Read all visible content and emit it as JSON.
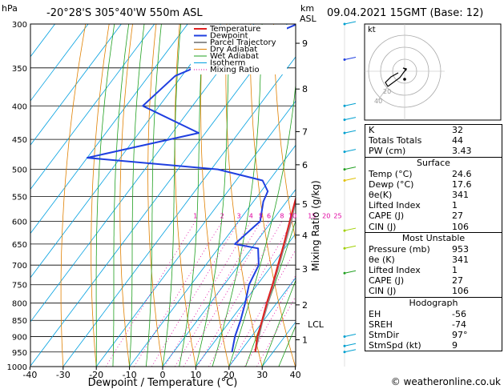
{
  "header": {
    "location": "-20°28'S  305°40'W  550m  ASL",
    "datetime": "09.04.2021  15GMT  (Base: 12)",
    "hpa_label": "hPa",
    "km_label": "km",
    "asl_label": "ASL"
  },
  "chart_data": {
    "type": "skew-t",
    "xlabel": "Dewpoint / Temperature (°C)",
    "ylabel_right": "Mixing Ratio (g/kg)",
    "x_ticks": [
      "-40",
      "-30",
      "-20",
      "-10",
      "0",
      "10",
      "20",
      "30",
      "40"
    ],
    "p_ticks": [
      {
        "p": 300,
        "label": "300"
      },
      {
        "p": 350,
        "label": "350"
      },
      {
        "p": 400,
        "label": "400"
      },
      {
        "p": 450,
        "label": "450"
      },
      {
        "p": 500,
        "label": "500"
      },
      {
        "p": 550,
        "label": "550"
      },
      {
        "p": 600,
        "label": "600"
      },
      {
        "p": 650,
        "label": "650"
      },
      {
        "p": 700,
        "label": "700"
      },
      {
        "p": 750,
        "label": "750"
      },
      {
        "p": 800,
        "label": "800"
      },
      {
        "p": 850,
        "label": "850"
      },
      {
        "p": 900,
        "label": "900"
      },
      {
        "p": 950,
        "label": "950"
      },
      {
        "p": 1000,
        "label": "1000"
      }
    ],
    "km_ticks": [
      {
        "p": 321,
        "label": "9"
      },
      {
        "p": 377,
        "label": "8"
      },
      {
        "p": 438,
        "label": "7"
      },
      {
        "p": 492,
        "label": "6"
      },
      {
        "p": 565,
        "label": "5"
      },
      {
        "p": 630,
        "label": "4"
      },
      {
        "p": 710,
        "label": "3"
      },
      {
        "p": 805,
        "label": "2"
      },
      {
        "p": 910,
        "label": "1"
      }
    ],
    "lcl": {
      "p": 860,
      "label": "LCL"
    },
    "mixing_ratio_labels": [
      "1",
      "2",
      "3",
      "4",
      "5",
      "6",
      "8",
      "10",
      "15",
      "20",
      "25"
    ],
    "legend": [
      "Temperature",
      "Dewpoint",
      "Parcel Trajectory",
      "Dry Adiabat",
      "Wet Adiabat",
      "Isotherm",
      "Mixing Ratio"
    ],
    "temperature": [
      {
        "p": 300,
        "t": -31
      },
      {
        "p": 350,
        "t": -23.5
      },
      {
        "p": 400,
        "t": -15
      },
      {
        "p": 450,
        "t": -8.5
      },
      {
        "p": 500,
        "t": -3
      },
      {
        "p": 550,
        "t": 1.8
      },
      {
        "p": 600,
        "t": 5.4
      },
      {
        "p": 650,
        "t": 8.8
      },
      {
        "p": 700,
        "t": 11.8
      },
      {
        "p": 750,
        "t": 14.6
      },
      {
        "p": 800,
        "t": 17
      },
      {
        "p": 850,
        "t": 19.5
      },
      {
        "p": 900,
        "t": 21.8
      },
      {
        "p": 950,
        "t": 24.6
      }
    ],
    "dewpoint": [
      {
        "p": 300,
        "t": -37
      },
      {
        "p": 330,
        "t": -50
      },
      {
        "p": 360,
        "t": -62
      },
      {
        "p": 400,
        "t": -65
      },
      {
        "p": 440,
        "t": -42
      },
      {
        "p": 480,
        "t": -70
      },
      {
        "p": 490,
        "t": -49
      },
      {
        "p": 500,
        "t": -28
      },
      {
        "p": 520,
        "t": -12
      },
      {
        "p": 540,
        "t": -8
      },
      {
        "p": 560,
        "t": -7
      },
      {
        "p": 600,
        "t": -3.5
      },
      {
        "p": 650,
        "t": -6
      },
      {
        "p": 660,
        "t": 2
      },
      {
        "p": 700,
        "t": 6
      },
      {
        "p": 750,
        "t": 7.5
      },
      {
        "p": 800,
        "t": 10.5
      },
      {
        "p": 850,
        "t": 13
      },
      {
        "p": 900,
        "t": 15
      },
      {
        "p": 950,
        "t": 17.6
      }
    ],
    "parcel": [
      {
        "p": 950,
        "t": 24.6
      },
      {
        "p": 860,
        "t": 20.2
      },
      {
        "p": 800,
        "t": 17.4
      },
      {
        "p": 700,
        "t": 12.1
      },
      {
        "p": 600,
        "t": 5.9
      },
      {
        "p": 500,
        "t": -2.6
      },
      {
        "p": 400,
        "t": -14.5
      },
      {
        "p": 300,
        "t": -30
      }
    ]
  },
  "hodograph": {
    "label": "kt",
    "ring_labels": [
      "20",
      "40"
    ]
  },
  "indices": [
    {
      "key": "K",
      "value": "32"
    },
    {
      "key": "Totals Totals",
      "value": "44"
    },
    {
      "key": "PW (cm)",
      "value": "3.43"
    }
  ],
  "surface": {
    "title": "Surface",
    "rows": [
      {
        "key": "Temp (°C)",
        "value": "24.6"
      },
      {
        "key": "Dewp (°C)",
        "value": "17.6"
      },
      {
        "key": "θe(K)",
        "value": "341"
      },
      {
        "key": "Lifted Index",
        "value": "1"
      },
      {
        "key": "CAPE (J)",
        "value": "27"
      },
      {
        "key": "CIN (J)",
        "value": "106"
      }
    ]
  },
  "most_unstable": {
    "title": "Most Unstable",
    "rows": [
      {
        "key": "Pressure (mb)",
        "value": "953"
      },
      {
        "key": "θe (K)",
        "value": "341"
      },
      {
        "key": "Lifted Index",
        "value": "1"
      },
      {
        "key": "CAPE (J)",
        "value": "27"
      },
      {
        "key": "CIN (J)",
        "value": "106"
      }
    ]
  },
  "hodo_params": {
    "title": "Hodograph",
    "rows": [
      {
        "key": "EH",
        "value": "-56"
      },
      {
        "key": "SREH",
        "value": "-74"
      },
      {
        "key": "StmDir",
        "value": "97°"
      },
      {
        "key": "StmSpd (kt)",
        "value": "9"
      }
    ]
  },
  "footer": "© weatheronline.co.uk",
  "colors": {
    "temperature": "#e02020",
    "dewpoint": "#1f3fe0",
    "parcel": "#909090",
    "dry": "#e08000",
    "wet": "#20a020",
    "isotherm": "#00a0e0",
    "mixing": "#e000a0",
    "wind": "#00a0d0"
  }
}
